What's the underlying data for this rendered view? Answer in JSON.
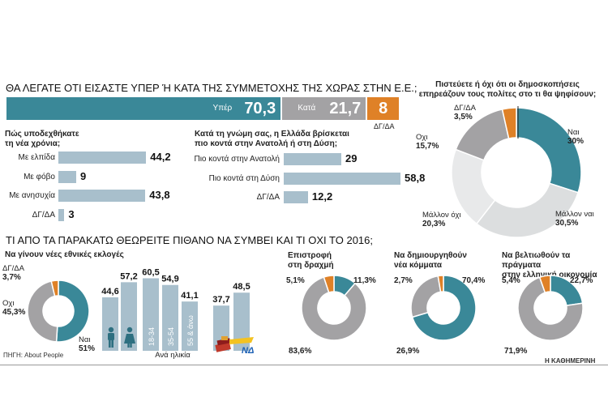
{
  "colors": {
    "teal": "#3a8898",
    "gray": "#a3a2a4",
    "orange": "#df8127",
    "lightbar": "#a8bfcc",
    "lightgray": "#dcdedf",
    "darkteal": "#2d6f80"
  },
  "header": {
    "title": "ΘΑ ΛΕΓΑΤΕ ΟΤΙ ΕΙΣΑΣΤΕ ΥΠΕΡ Ή ΚΑΤΑ ΤΗΣ ΣΥΜΜΕΤΟΧΗΣ ΤΗΣ ΧΩΡΑΣ ΣΤΗΝ Ε.Ε.;"
  },
  "membership": {
    "segments": [
      {
        "label": "Υπέρ",
        "value": 70.3,
        "value_text": "70,3"
      },
      {
        "label": "Κατά",
        "value": 21.7,
        "value_text": "21,7"
      },
      {
        "label": "ΔΓ/ΔΑ",
        "value": 8,
        "value_text": "8"
      }
    ]
  },
  "future": {
    "title_line1": "Πώς υποδεχθήκατε",
    "title_line2": "τη νέα χρόνια;",
    "items": [
      {
        "label": "Με ελπίδα",
        "value": 44.2,
        "value_text": "44,2"
      },
      {
        "label": "Με φόβο",
        "value": 9,
        "value_text": "9"
      },
      {
        "label": "Με ανησυχία",
        "value": 43.8,
        "value_text": "43,8"
      },
      {
        "label": "ΔΓ/ΔΑ",
        "value": 3,
        "value_text": "3"
      }
    ]
  },
  "eastwest": {
    "title_line1": "Κατά τη γνώμη σας, η Ελλάδα βρίσκεται",
    "title_line2": "πιο κοντά στην Ανατολή ή στη Δύση;",
    "items": [
      {
        "label": "Πιο κοντά στην Ανατολή",
        "value": 29,
        "value_text": "29"
      },
      {
        "label": "Πιο κοντά στη Δύση",
        "value": 58.8,
        "value_text": "58,8"
      },
      {
        "label": "ΔΓ/ΔΑ",
        "value": 12.2,
        "value_text": "12,2"
      }
    ]
  },
  "polls": {
    "title_line1": "Πιστεύετε ή όχι ότι οι δημοσκοπήσεις",
    "title_line2": "επηρεάζουν τους πολίτες στο τι θα ψηφίσουν;",
    "slices": [
      {
        "label": "Ναι",
        "value": 30,
        "value_text": "30%"
      },
      {
        "label": "Μάλλον ναι",
        "value": 30.5,
        "value_text": "30,5%"
      },
      {
        "label": "Μάλλον όχι",
        "value": 20.3,
        "value_text": "20,3%"
      },
      {
        "label": "Οχι",
        "value": 15.7,
        "value_text": "15,7%"
      },
      {
        "label": "ΔΓ/ΔΑ",
        "value": 3.5,
        "value_text": "3,5%"
      }
    ]
  },
  "section2": {
    "title": "ΤΙ ΑΠΟ ΤΑ ΠΑΡΑΚΑΤΩ ΘΕΩΡΕΙΤΕ ΠΙΘΑΝΟ ΝΑ ΣΥΜΒΕΙ ΚΑΙ ΤΙ ΟΧΙ ΤΟ 2016;"
  },
  "elections": {
    "title": "Να γίνουν νέες εθνικές εκλογές",
    "slices": [
      {
        "label": "Ναι",
        "value": 51,
        "value_text": "51%"
      },
      {
        "label": "Οχι",
        "value": 45.3,
        "value_text": "45,3%"
      },
      {
        "label": "ΔΓ/ΔΑ",
        "value": 3.7,
        "value_text": "3,7%"
      }
    ],
    "gender_bars": [
      {
        "value": 44.6,
        "value_text": "44,6"
      },
      {
        "value": 57.2,
        "value_text": "57,2"
      }
    ],
    "age_bars": [
      {
        "label": "18-34",
        "value": 60.5,
        "value_text": "60,5"
      },
      {
        "label": "35-54",
        "value": 54.9,
        "value_text": "54,9"
      },
      {
        "label": "55 & άνω",
        "value": 41.1,
        "value_text": "41,1"
      }
    ],
    "age_caption": "Ανά ηλικία",
    "party_bars": [
      {
        "value": 37.7,
        "value_text": "37,7"
      },
      {
        "value": 48.5,
        "value_text": "48,5"
      }
    ],
    "party_logo_text": "ΝΔ"
  },
  "drachma": {
    "title_line1": "Επιστροφή",
    "title_line2": "στη δραχμή",
    "slices": [
      {
        "label": "",
        "value": 11.3,
        "value_text": "11,3%"
      },
      {
        "label": "",
        "value": 83.6,
        "value_text": "83,6%"
      },
      {
        "label": "",
        "value": 5.1,
        "value_text": "5,1%"
      }
    ]
  },
  "parties": {
    "title_line1": "Να δημιουργηθούν",
    "title_line2": "νέα κόμματα",
    "slices": [
      {
        "label": "",
        "value": 70.4,
        "value_text": "70,4%"
      },
      {
        "label": "",
        "value": 26.9,
        "value_text": "26,9%"
      },
      {
        "label": "",
        "value": 2.7,
        "value_text": "2,7%"
      }
    ]
  },
  "economy": {
    "title_line1": "Να βελτιωθούν τα πράγματα",
    "title_line2": "στην ελληνική οικονομία",
    "slices": [
      {
        "label": "",
        "value": 22.7,
        "value_text": "22,7%"
      },
      {
        "label": "",
        "value": 71.9,
        "value_text": "71,9%"
      },
      {
        "label": "",
        "value": 5.4,
        "value_text": "5,4%"
      }
    ]
  },
  "source": "ΠΗΓΗ: About People",
  "credit": "Η ΚΑΘΗΜΕΡΙΝΗ",
  "chart_data": [
    {
      "type": "bar",
      "title": "ΘΑ ΛΕΓΑΤΕ ΟΤΙ ΕΙΣΑΣΤΕ ΥΠΕΡ Ή ΚΑΤΑ ΤΗΣ ΣΥΜΜΕΤΟΧΗΣ ΤΗΣ ΧΩΡΑΣ ΣΤΗΝ Ε.Ε.;",
      "categories": [
        "Υπέρ",
        "Κατά",
        "ΔΓ/ΔΑ"
      ],
      "values": [
        70.3,
        21.7,
        8
      ]
    },
    {
      "type": "bar",
      "title": "Πώς υποδεχθήκατε τη νέα χρόνια;",
      "categories": [
        "Με ελπίδα",
        "Με φόβο",
        "Με ανησυχία",
        "ΔΓ/ΔΑ"
      ],
      "values": [
        44.2,
        9,
        43.8,
        3
      ]
    },
    {
      "type": "bar",
      "title": "Κατά τη γνώμη σας, η Ελλάδα βρίσκεται πιο κοντά στην Ανατολή ή στη Δύση;",
      "categories": [
        "Πιο κοντά στην Ανατολή",
        "Πιο κοντά στη Δύση",
        "ΔΓ/ΔΑ"
      ],
      "values": [
        29,
        58.8,
        12.2
      ]
    },
    {
      "type": "pie",
      "title": "Πιστεύετε ή όχι ότι οι δημοσκοπήσεις επηρεάζουν τους πολίτες στο τι θα ψηφίσουν;",
      "categories": [
        "Ναι",
        "Μάλλον ναι",
        "Μάλλον όχι",
        "Οχι",
        "ΔΓ/ΔΑ"
      ],
      "values": [
        30,
        30.5,
        20.3,
        15.7,
        3.5
      ]
    },
    {
      "type": "pie",
      "title": "Να γίνουν νέες εθνικές εκλογές",
      "categories": [
        "Ναι",
        "Οχι",
        "ΔΓ/ΔΑ"
      ],
      "values": [
        51,
        45.3,
        3.7
      ]
    },
    {
      "type": "bar",
      "categories": [
        "18-34",
        "35-54",
        "55 & άνω"
      ],
      "xlabel": "Ανά ηλικία",
      "values": [
        60.5,
        54.9,
        41.1
      ]
    },
    {
      "type": "pie",
      "title": "Επιστροφή στη δραχμή",
      "values": [
        11.3,
        83.6,
        5.1
      ]
    },
    {
      "type": "pie",
      "title": "Να δημιουργηθούν νέα κόμματα",
      "values": [
        70.4,
        26.9,
        2.7
      ]
    },
    {
      "type": "pie",
      "title": "Να βελτιωθούν τα πράγματα στην ελληνική οικονομία",
      "values": [
        22.7,
        71.9,
        5.4
      ]
    }
  ]
}
